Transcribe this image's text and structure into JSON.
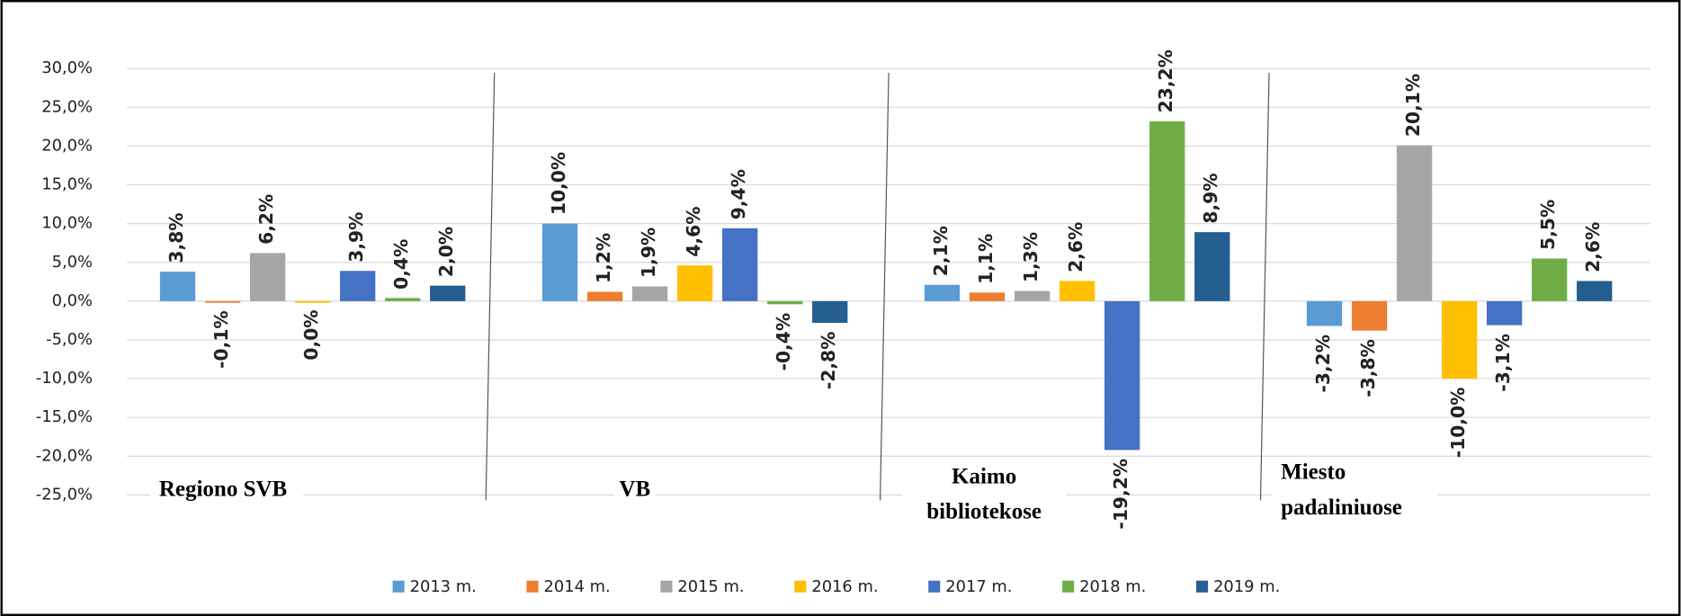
{
  "chart_data": {
    "type": "bar",
    "categories": [
      "Regiono SVB",
      "VB",
      "Kaimo bibliotekose",
      "Miesto padaliniuose"
    ],
    "series": [
      {
        "name": "2013 m.",
        "color": "#5b9bd5",
        "values": [
          3.8,
          10.0,
          2.1,
          -3.2
        ],
        "value_labels": [
          "3,8%",
          "10,0%",
          "2,1%",
          "-3,2%"
        ]
      },
      {
        "name": "2014 m.",
        "color": "#ed7d31",
        "values": [
          -0.1,
          1.2,
          1.1,
          -3.8
        ],
        "value_labels": [
          "-0,1%",
          "1,2%",
          "1,1%",
          "-3,8%"
        ]
      },
      {
        "name": "2015 m.",
        "color": "#a5a5a5",
        "values": [
          6.2,
          1.9,
          1.3,
          20.1
        ],
        "value_labels": [
          "6,2%",
          "1,9%",
          "1,3%",
          "20,1%"
        ]
      },
      {
        "name": "2016 m.",
        "color": "#ffc000",
        "values": [
          0.0,
          4.6,
          2.6,
          -10.0
        ],
        "value_labels": [
          "0,0%",
          "4,6%",
          "2,6%",
          "-10,0%"
        ]
      },
      {
        "name": "2017 m.",
        "color": "#4472c4",
        "values": [
          3.9,
          9.4,
          -19.2,
          -3.1
        ],
        "value_labels": [
          "3,9%",
          "9,4%",
          "-19,2%",
          "-3,1%"
        ]
      },
      {
        "name": "2018 m.",
        "color": "#70ad47",
        "values": [
          0.4,
          -0.4,
          23.2,
          5.5
        ],
        "value_labels": [
          "0,4%",
          "-0,4%",
          "23,2%",
          "5,5%"
        ]
      },
      {
        "name": "2019 m.",
        "color": "#255e91",
        "values": [
          2.0,
          -2.8,
          8.9,
          2.6
        ],
        "value_labels": [
          "2,0%",
          "-2,8%",
          "8,9%",
          "2,6%"
        ]
      }
    ],
    "ylim": [
      -25,
      30
    ],
    "yticks": [
      {
        "value": 30,
        "label": "30,0%"
      },
      {
        "value": 25,
        "label": "25,0%"
      },
      {
        "value": 20,
        "label": "20,0%"
      },
      {
        "value": 15,
        "label": "15,0%"
      },
      {
        "value": 10,
        "label": "10,0%"
      },
      {
        "value": 5,
        "label": "5,0%"
      },
      {
        "value": 0,
        "label": "0,0%"
      },
      {
        "value": -5,
        "label": "-5,0%"
      },
      {
        "value": -10,
        "label": "-10,0%"
      },
      {
        "value": -15,
        "label": "-15,0%"
      },
      {
        "value": -20,
        "label": "-20,0%"
      },
      {
        "value": -25,
        "label": "-25,0%"
      }
    ],
    "grid": true,
    "legend": "bottom"
  }
}
